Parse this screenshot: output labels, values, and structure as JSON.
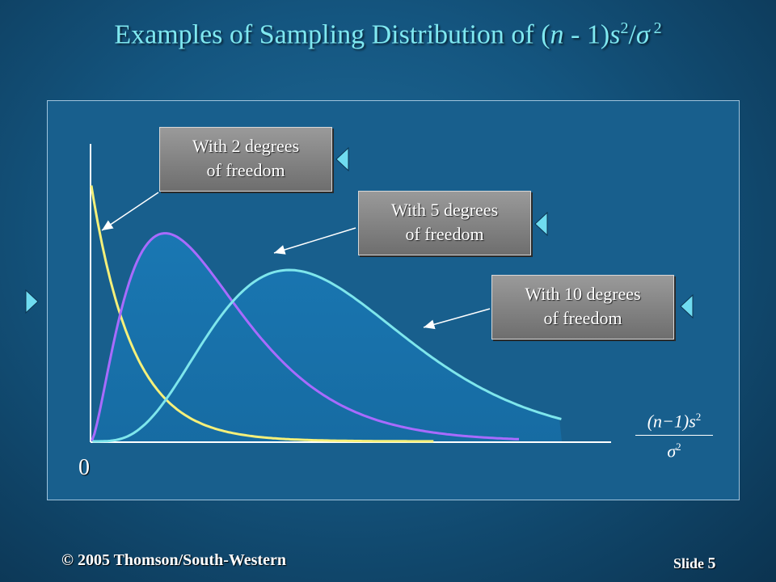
{
  "slide": {
    "title_main": "Examples of Sampling Distribution of (",
    "title_n": "n",
    "title_mid": " - 1)",
    "title_s": "s",
    "title_exp1": "2",
    "title_slash": "/",
    "title_sigma": "σ",
    "title_exp2": " 2",
    "footer_copyright": "© 2005  Thomson/South-Western",
    "footer_slide_word": "Slide",
    "footer_slide_number": "5"
  },
  "labels": {
    "df2_line1": "With 2 degrees",
    "df2_line2": "of freedom",
    "df5_line1": "With 5 degrees",
    "df5_line2": "of freedom",
    "df10_line1": "With 10 degrees",
    "df10_line2": "of freedom"
  },
  "axis": {
    "zero": "0",
    "frac_num_pre": "(",
    "frac_num_n": "n",
    "frac_num_mid": "−1)",
    "frac_num_s": "s",
    "frac_exp": "2",
    "frac_den_sigma": "σ",
    "frac_den_exp": "2"
  },
  "colors": {
    "title": "#7fe8f0",
    "df2_curve": "#f5f07a",
    "df5_curve": "#a86bff",
    "df10_curve": "#7ee6ec",
    "nav_triangle": "#6fdcf0"
  },
  "chart_data": {
    "type": "line",
    "series": [
      {
        "name": "With 2 degrees of freedom",
        "df": 2
      },
      {
        "name": "With 5 degrees of freedom",
        "df": 5
      },
      {
        "name": "With 10 degrees of freedom",
        "df": 10
      }
    ],
    "x_range": [
      0,
      20
    ],
    "grid": false
  }
}
